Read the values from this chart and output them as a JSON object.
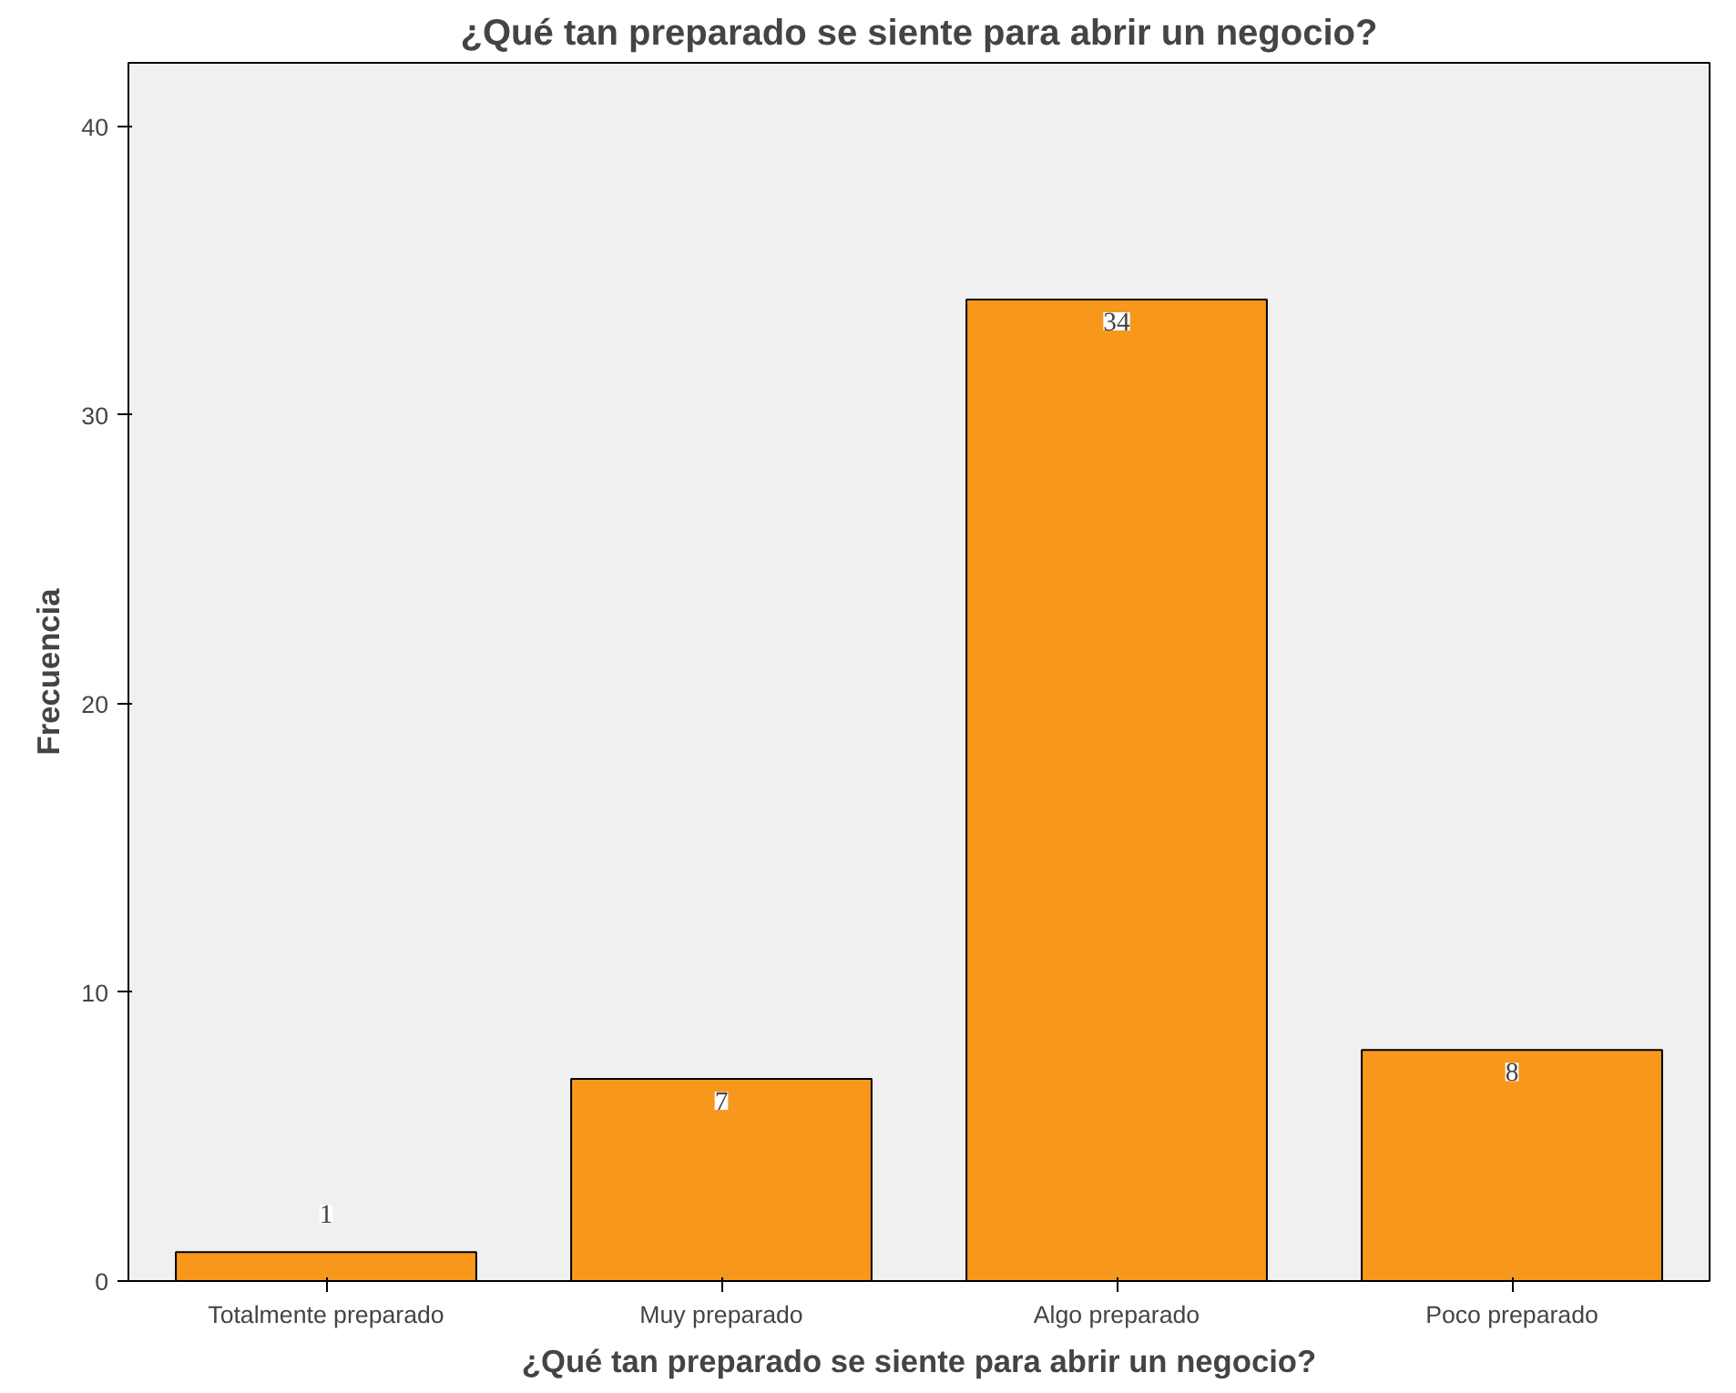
{
  "chart_data": {
    "type": "bar",
    "title": "¿Qué tan preparado se siente para abrir un negocio?",
    "xlabel": "¿Qué tan preparado se siente para abrir un negocio?",
    "ylabel": "Frecuencia",
    "categories": [
      "Totalmente preparado",
      "Muy preparado",
      "Algo preparado",
      "Poco preparado"
    ],
    "values": [
      1,
      7,
      34,
      8
    ],
    "color": "#f7981d",
    "data_labels": true,
    "grid": false,
    "ylim": [
      0,
      42.2
    ],
    "yticks": [
      0,
      10,
      20,
      30,
      40
    ]
  }
}
